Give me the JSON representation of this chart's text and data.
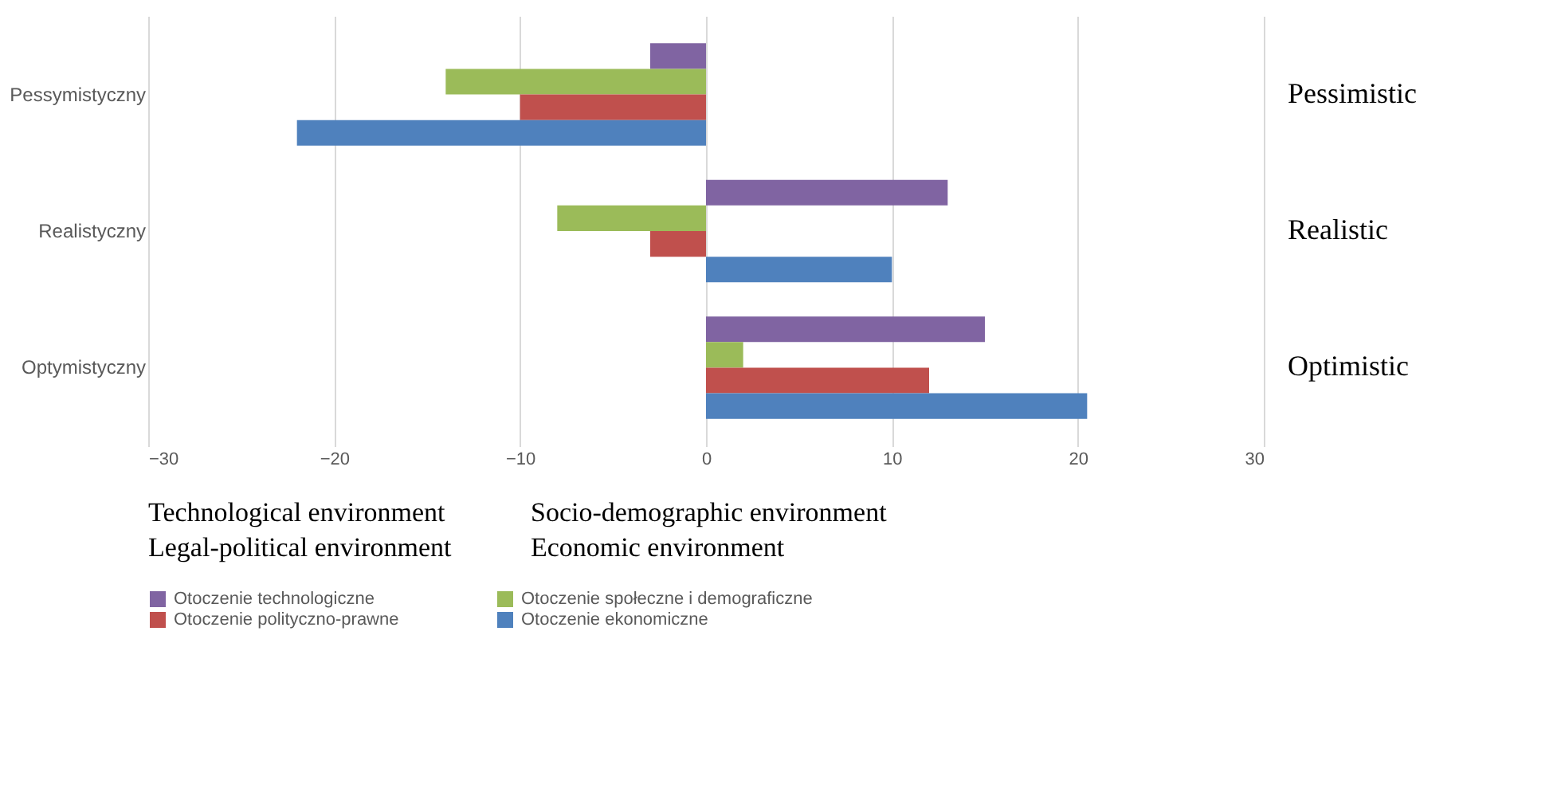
{
  "chart_data": {
    "type": "bar",
    "orientation": "horizontal",
    "categories": [
      "Pessymistyczny",
      "Realistyczny",
      "Optymistyczny"
    ],
    "series": [
      {
        "name": "Otoczenie technologiczne",
        "color": "#8064a2",
        "values": [
          -3,
          13,
          15
        ]
      },
      {
        "name": "Otoczenie społeczne i demograficzne",
        "color": "#9bbb59",
        "values": [
          -14,
          -8,
          2
        ]
      },
      {
        "name": "Otoczenie polityczno-prawne",
        "color": "#c0504d",
        "values": [
          -10,
          -3,
          12
        ]
      },
      {
        "name": "Otoczenie ekonomiczne",
        "color": "#4f81bd",
        "values": [
          -22,
          10,
          20.5
        ]
      }
    ],
    "xlim": [
      -30,
      30
    ],
    "xticks": [
      -30,
      -20,
      -10,
      0,
      10,
      20,
      30
    ],
    "grid": "x",
    "legend": "bottom",
    "annotations": [
      "Pessimistic",
      "Realistic",
      "Optimistic",
      "Technological environment",
      "Socio-demographic environment",
      "Legal-political environment",
      "Economic environment"
    ]
  }
}
